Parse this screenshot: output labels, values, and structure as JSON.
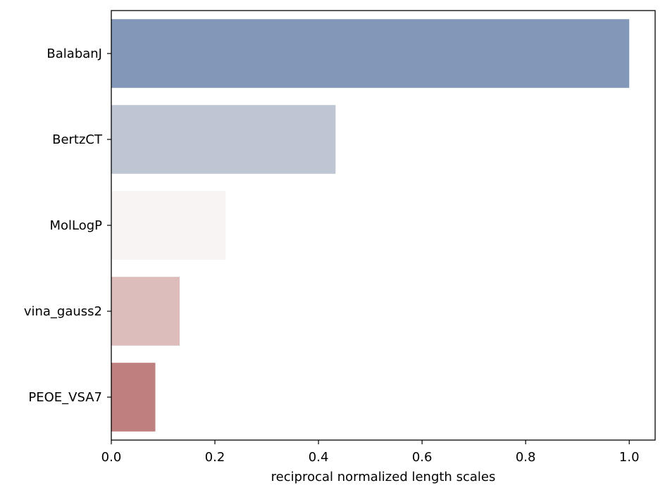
{
  "chart_data": {
    "type": "bar",
    "orientation": "horizontal",
    "title": "",
    "xlabel": "reciprocal normalized length scales",
    "ylabel": "",
    "xlim": [
      0.0,
      1.05
    ],
    "xticks": [
      0.0,
      0.2,
      0.4,
      0.6,
      0.8,
      1.0
    ],
    "xtick_labels": [
      "0.0",
      "0.2",
      "0.4",
      "0.6",
      "0.8",
      "1.0"
    ],
    "grid": false,
    "categories": [
      "BalabanJ",
      "BertzCT",
      "MolLogP",
      "vina_gauss2",
      "PEOE_VSA7"
    ],
    "values": [
      1.0,
      0.433,
      0.221,
      0.132,
      0.085
    ],
    "colors": [
      "#8298b8",
      "#bec6d4",
      "#f8f4f4",
      "#ddbcbc",
      "#bd807f"
    ]
  }
}
